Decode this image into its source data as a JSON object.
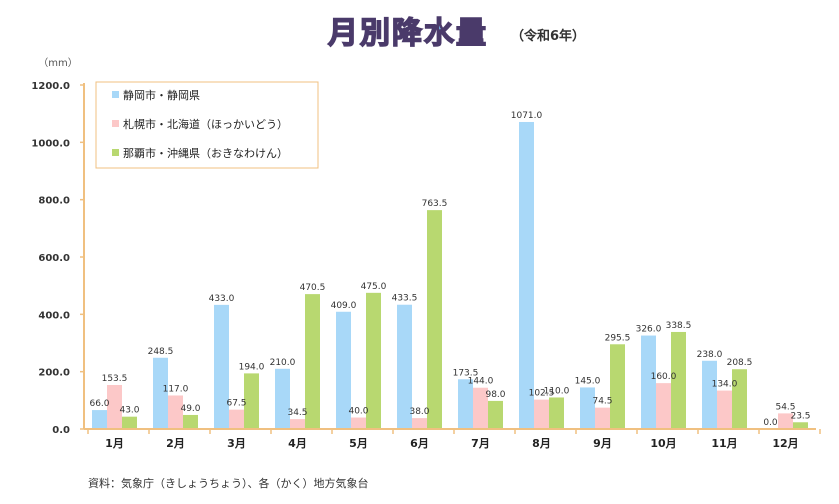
{
  "chart_data": {
    "type": "bar",
    "title": "月別降水量",
    "subtitle": "（令和6年）",
    "unit_label": "（mm）",
    "xlabel": "",
    "ylabel": "（mm）",
    "ylim": [
      0,
      1200
    ],
    "yticks": [
      "0.0",
      "200.0",
      "400.0",
      "600.0",
      "800.0",
      "1000.0",
      "1200.0"
    ],
    "grid": false,
    "legend_position": "top-left",
    "categories": [
      "1月",
      "2月",
      "3月",
      "4月",
      "5月",
      "6月",
      "7月",
      "8月",
      "9月",
      "10月",
      "11月",
      "12月"
    ],
    "series": [
      {
        "name": "静岡市・静岡県",
        "color": "#a8d8f8",
        "values": [
          66.0,
          248.5,
          433.0,
          210.0,
          409.0,
          433.5,
          173.5,
          1071.0,
          145.0,
          326.0,
          238.0,
          0.0
        ],
        "labels": [
          "66.0",
          "248.5",
          "433.0",
          "210.0",
          "409.0",
          "433.5",
          "173.5",
          "1071.0",
          "145.0",
          "326.0",
          "238.0",
          "0.0"
        ]
      },
      {
        "name": "札幌市・北海道（ほっかいどう）",
        "color": "#fcc8c8",
        "values": [
          153.5,
          117.0,
          67.5,
          34.5,
          40.0,
          38.0,
          144.0,
          102.5,
          74.5,
          160.0,
          134.0,
          54.5
        ],
        "labels": [
          "153.5",
          "117.0",
          "67.5",
          "34.5",
          "40.0",
          "38.0",
          "144.0",
          "102.5",
          "74.5",
          "160.0",
          "134.0",
          "54.5"
        ]
      },
      {
        "name": "那覇市・沖縄県（おきなわけん）",
        "color": "#b8d870",
        "values": [
          43.0,
          49.0,
          194.0,
          470.5,
          475.0,
          763.5,
          98.0,
          110.0,
          295.5,
          338.5,
          208.5,
          23.5
        ],
        "labels": [
          "43.0",
          "49.0",
          "194.0",
          "470.5",
          "475.0",
          "763.5",
          "98.0",
          "110.0",
          "295.5",
          "338.5",
          "208.5",
          "23.5"
        ]
      }
    ],
    "source_note": "資料：気象庁（きしょうちょう）、各（かく）地方気象台"
  },
  "colors": {
    "axis": "#f0c080",
    "title_fill": "#7ab8e8",
    "title_stroke": "#5a4a7a",
    "text": "#333333"
  }
}
